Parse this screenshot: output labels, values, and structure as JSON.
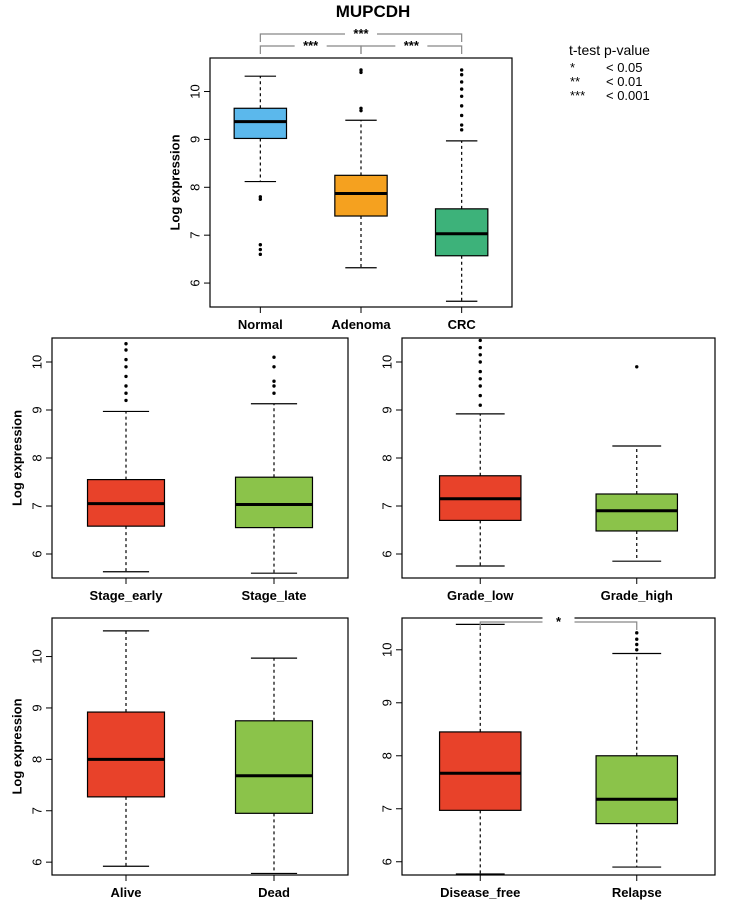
{
  "colors": {
    "normal": "#5bb8ec",
    "adenoma": "#f5a11f",
    "crc": "#3db27a",
    "red": "#e8422a",
    "green": "#8bc34a"
  },
  "legend": {
    "title": "t-test p-value",
    "rows": [
      {
        "sym": "*",
        "val": "< 0.05"
      },
      {
        "sym": "**",
        "val": "< 0.01"
      },
      {
        "sym": "***",
        "val": "< 0.001"
      }
    ]
  },
  "chart_data": [
    {
      "type": "boxplot",
      "title": "MUPCDH",
      "ylabel": "Log expression",
      "ylim": [
        5.5,
        10.7
      ],
      "yticks": [
        6,
        7,
        8,
        9,
        10
      ],
      "categories": [
        "Normal",
        "Adenoma",
        "CRC"
      ],
      "colors": [
        "normal",
        "adenoma",
        "crc"
      ],
      "boxes": [
        {
          "min": 8.12,
          "q1": 9.02,
          "median": 9.37,
          "q3": 9.65,
          "max": 10.32,
          "outliers": [
            7.8,
            7.75,
            6.8,
            6.7,
            6.6
          ]
        },
        {
          "min": 6.32,
          "q1": 7.4,
          "median": 7.87,
          "q3": 8.25,
          "max": 9.4,
          "outliers": [
            9.65,
            9.6,
            10.45,
            10.4
          ]
        },
        {
          "min": 5.62,
          "q1": 6.57,
          "median": 7.03,
          "q3": 7.55,
          "max": 8.97,
          "outliers": [
            9.2,
            9.3,
            9.5,
            9.7,
            9.9,
            10.05,
            10.2,
            10.35,
            10.45
          ]
        }
      ],
      "significance": [
        {
          "from": 0,
          "to": 2,
          "label": "***",
          "level": 2
        },
        {
          "from": 0,
          "to": 1,
          "label": "***",
          "level": 1
        },
        {
          "from": 1,
          "to": 2,
          "label": "***",
          "level": 1
        }
      ]
    },
    {
      "type": "boxplot",
      "ylabel": "Log expression",
      "ylim": [
        5.5,
        10.5
      ],
      "yticks": [
        6,
        7,
        8,
        9,
        10
      ],
      "categories": [
        "Stage_early",
        "Stage_late"
      ],
      "colors": [
        "red",
        "green"
      ],
      "boxes": [
        {
          "min": 5.63,
          "q1": 6.58,
          "median": 7.05,
          "q3": 7.55,
          "max": 8.97,
          "outliers": [
            9.2,
            9.35,
            9.5,
            9.7,
            9.9,
            10.05,
            10.25,
            10.38
          ]
        },
        {
          "min": 5.6,
          "q1": 6.55,
          "median": 7.03,
          "q3": 7.6,
          "max": 9.13,
          "outliers": [
            9.35,
            9.5,
            9.6,
            9.9,
            10.1
          ]
        }
      ],
      "significance": []
    },
    {
      "type": "boxplot",
      "ylabel": "",
      "ylim": [
        5.5,
        10.5
      ],
      "yticks": [
        6,
        7,
        8,
        9,
        10
      ],
      "categories": [
        "Grade_low",
        "Grade_high"
      ],
      "colors": [
        "red",
        "green"
      ],
      "boxes": [
        {
          "min": 5.75,
          "q1": 6.7,
          "median": 7.15,
          "q3": 7.63,
          "max": 8.92,
          "outliers": [
            9.1,
            9.3,
            9.5,
            9.65,
            9.8,
            10.0,
            10.15,
            10.3,
            10.45
          ]
        },
        {
          "min": 5.85,
          "q1": 6.48,
          "median": 6.9,
          "q3": 7.25,
          "max": 8.25,
          "outliers": [
            9.9
          ]
        }
      ],
      "significance": []
    },
    {
      "type": "boxplot",
      "ylabel": "Log expression",
      "ylim": [
        5.75,
        10.75
      ],
      "yticks": [
        6,
        7,
        8,
        9,
        10
      ],
      "categories": [
        "Alive",
        "Dead"
      ],
      "colors": [
        "red",
        "green"
      ],
      "boxes": [
        {
          "min": 5.92,
          "q1": 7.27,
          "median": 8.0,
          "q3": 8.92,
          "max": 10.5,
          "outliers": []
        },
        {
          "min": 5.78,
          "q1": 6.95,
          "median": 7.68,
          "q3": 8.75,
          "max": 9.97,
          "outliers": []
        }
      ],
      "significance": []
    },
    {
      "type": "boxplot",
      "ylabel": "",
      "ylim": [
        5.75,
        10.6
      ],
      "yticks": [
        6,
        7,
        8,
        9,
        10
      ],
      "categories": [
        "Disease_free",
        "Relapse"
      ],
      "colors": [
        "red",
        "green"
      ],
      "boxes": [
        {
          "min": 5.77,
          "q1": 6.97,
          "median": 7.67,
          "q3": 8.45,
          "max": 10.48,
          "outliers": []
        },
        {
          "min": 5.9,
          "q1": 6.72,
          "median": 7.18,
          "q3": 8.0,
          "max": 9.93,
          "outliers": [
            10.0,
            10.1,
            10.2,
            10.32
          ]
        }
      ],
      "significance": [
        {
          "from": 0,
          "to": 1,
          "label": "*",
          "level": 1
        }
      ]
    }
  ]
}
